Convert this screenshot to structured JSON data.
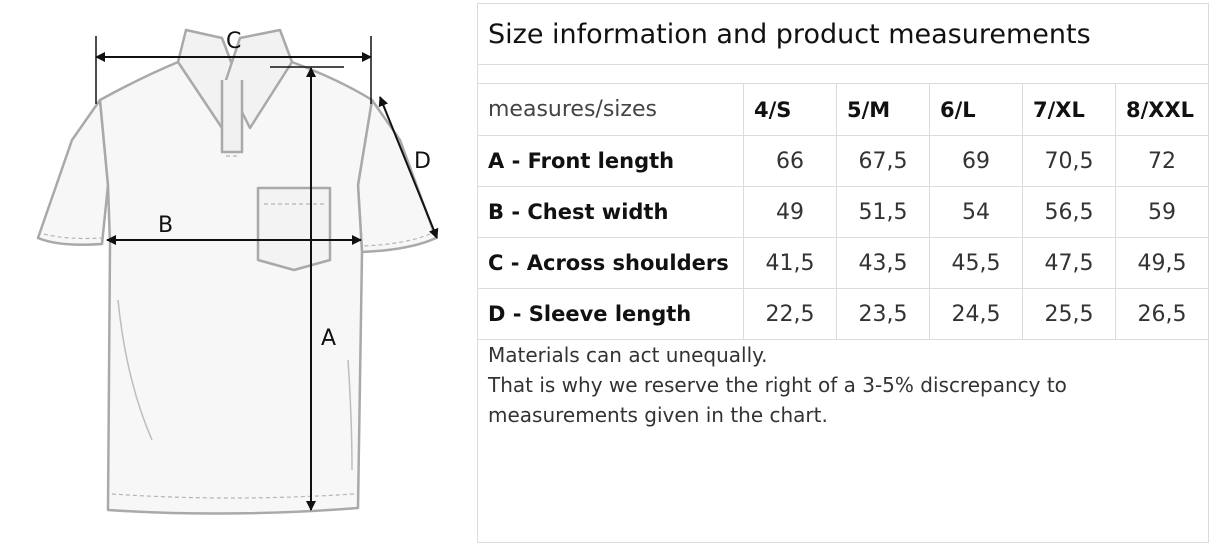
{
  "diagram": {
    "labels": {
      "a": "A",
      "b": "B",
      "c": "C",
      "d": "D"
    }
  },
  "table": {
    "title": "Size information and product measurements",
    "header": {
      "label": "measures/sizes",
      "sizes": [
        "4/S",
        "5/M",
        "6/L",
        "7/XL",
        "8/XXL"
      ]
    },
    "rows": [
      {
        "label": "A - Front length",
        "values": [
          "66",
          "67,5",
          "69",
          "70,5",
          "72"
        ]
      },
      {
        "label": "B - Chest width",
        "values": [
          "49",
          "51,5",
          "54",
          "56,5",
          "59"
        ]
      },
      {
        "label": "C - Across shoulders",
        "values": [
          "41,5",
          "43,5",
          "45,5",
          "47,5",
          "49,5"
        ]
      },
      {
        "label": "D - Sleeve length",
        "values": [
          "22,5",
          "23,5",
          "24,5",
          "25,5",
          "26,5"
        ]
      }
    ],
    "note": [
      "Materials can act unequally.",
      "That is why we reserve the right of a 3-5% discrepancy to",
      "measurements given in the chart."
    ]
  }
}
